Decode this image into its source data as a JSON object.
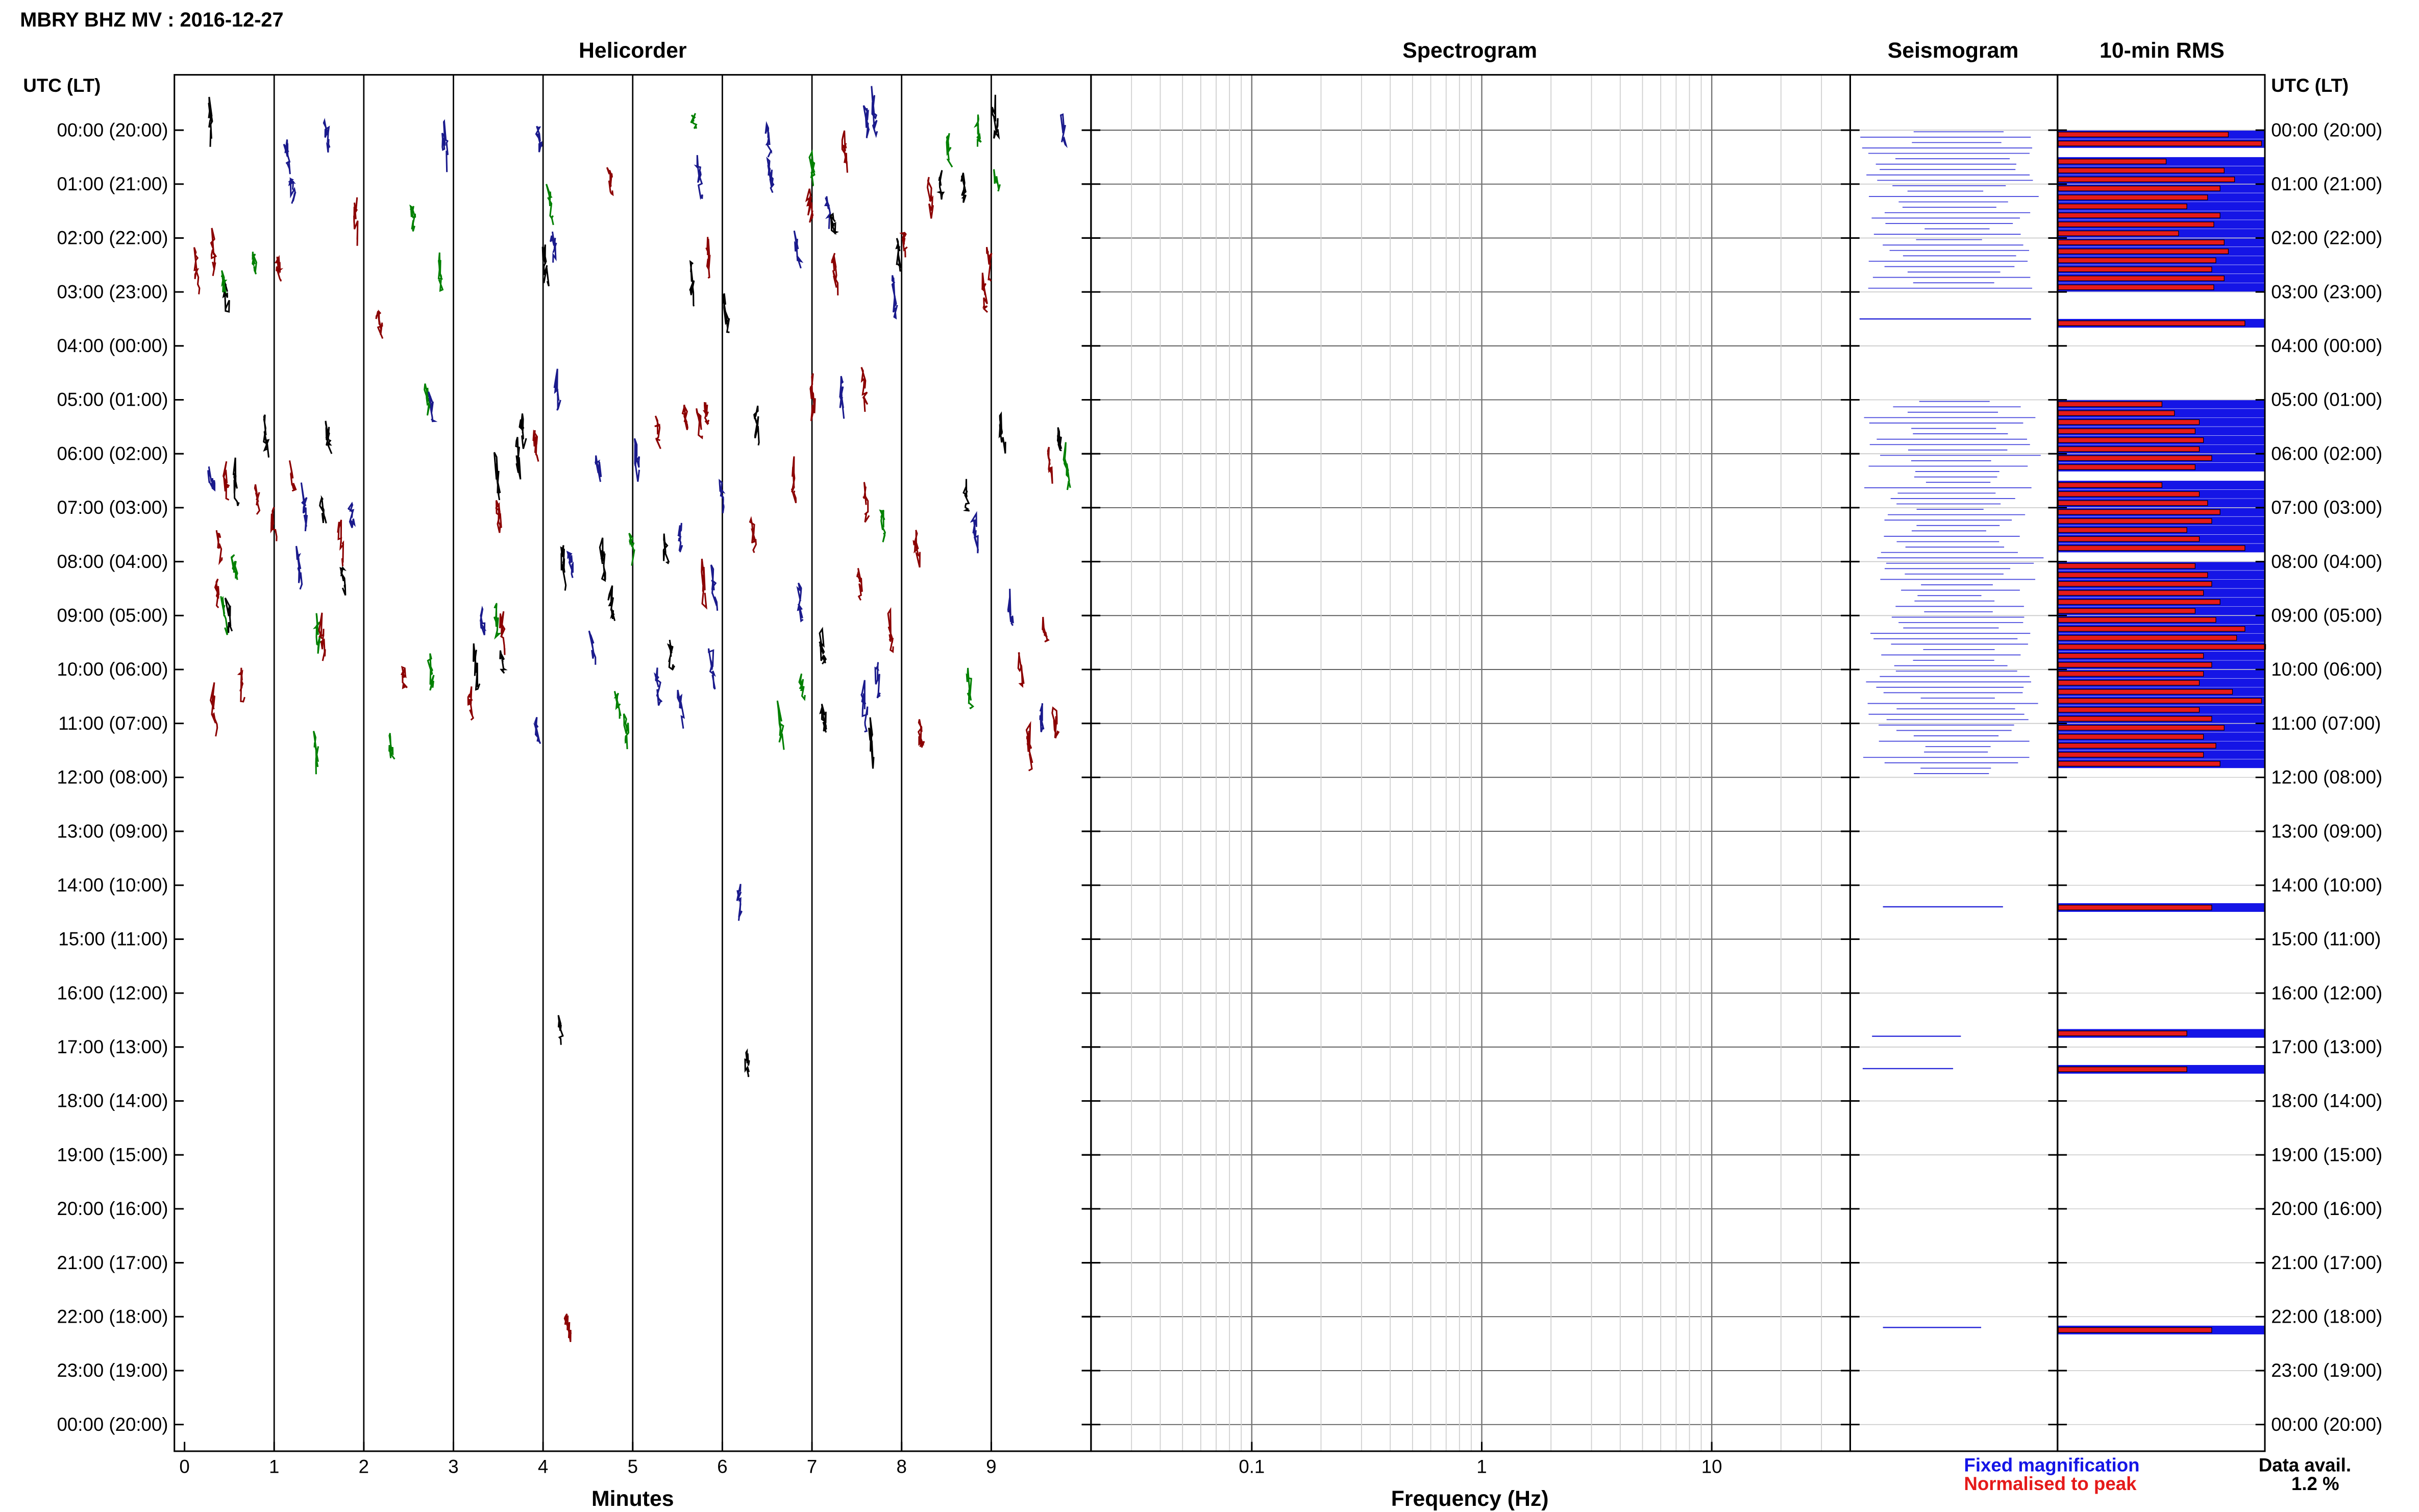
{
  "header": {
    "title": "MBRY BHZ MV : 2016-12-27",
    "time_axis_label": "UTC (LT)"
  },
  "panels": {
    "helicorder": "Helicorder",
    "spectrogram": "Spectrogram",
    "seismogram": "Seismogram",
    "rms": "10-min RMS"
  },
  "axes": {
    "minutes_label": "Minutes",
    "frequency_label": "Frequency (Hz)",
    "minute_ticks": [
      "0",
      "1",
      "2",
      "3",
      "4",
      "5",
      "6",
      "7",
      "8",
      "9"
    ],
    "frequency_ticks": [
      "0.1",
      "1",
      "10"
    ]
  },
  "legend": {
    "fixed": "Fixed magnification",
    "normalised": "Normalised to peak",
    "fixed_color": "#1515e6",
    "normalised_color": "#e51a1a"
  },
  "availability": {
    "label": "Data avail.",
    "value": "1.2 %"
  },
  "chart_data": {
    "type": "bar",
    "title": "MBRY BHZ MV : 2016-12-27",
    "time_labels": [
      "00:00 (20:00)",
      "01:00 (21:00)",
      "02:00 (22:00)",
      "03:00 (23:00)",
      "04:00 (00:00)",
      "05:00 (01:00)",
      "06:00 (02:00)",
      "07:00 (03:00)",
      "08:00 (04:00)",
      "09:00 (05:00)",
      "10:00 (06:00)",
      "11:00 (07:00)",
      "12:00 (08:00)",
      "13:00 (09:00)",
      "14:00 (10:00)",
      "15:00 (11:00)",
      "16:00 (12:00)",
      "17:00 (13:00)",
      "18:00 (14:00)",
      "19:00 (15:00)",
      "20:00 (16:00)",
      "21:00 (17:00)",
      "22:00 (18:00)",
      "23:00 (19:00)",
      "00:00 (20:00)"
    ],
    "helicorder_colors": [
      "#000000",
      "#1a1a8c",
      "#8b0000",
      "#008000"
    ],
    "helicorder_xlim": [
      0,
      10
    ],
    "spectrogram_xlim": [
      0.02,
      40
    ],
    "rms_unit_hours": 0.1667,
    "rms_bars": [
      {
        "t": 0.0,
        "fixed": 1.0,
        "normalised": 0.82
      },
      {
        "t": 0.167,
        "fixed": 1.0,
        "normalised": 0.98
      },
      {
        "t": 0.5,
        "fixed": 1.0,
        "normalised": 0.52
      },
      {
        "t": 0.667,
        "fixed": 1.0,
        "normalised": 0.8
      },
      {
        "t": 0.833,
        "fixed": 1.0,
        "normalised": 0.85
      },
      {
        "t": 1.0,
        "fixed": 1.0,
        "normalised": 0.78
      },
      {
        "t": 1.167,
        "fixed": 1.0,
        "normalised": 0.72
      },
      {
        "t": 1.333,
        "fixed": 1.0,
        "normalised": 0.62
      },
      {
        "t": 1.5,
        "fixed": 1.0,
        "normalised": 0.78
      },
      {
        "t": 1.667,
        "fixed": 1.0,
        "normalised": 0.75
      },
      {
        "t": 1.833,
        "fixed": 1.0,
        "normalised": 0.58
      },
      {
        "t": 2.0,
        "fixed": 1.0,
        "normalised": 0.8
      },
      {
        "t": 2.167,
        "fixed": 1.0,
        "normalised": 0.82
      },
      {
        "t": 2.333,
        "fixed": 1.0,
        "normalised": 0.76
      },
      {
        "t": 2.5,
        "fixed": 1.0,
        "normalised": 0.74
      },
      {
        "t": 2.667,
        "fixed": 1.0,
        "normalised": 0.8
      },
      {
        "t": 2.833,
        "fixed": 1.0,
        "normalised": 0.75
      },
      {
        "t": 3.5,
        "fixed": 1.0,
        "normalised": 0.9
      },
      {
        "t": 5.0,
        "fixed": 1.0,
        "normalised": 0.5
      },
      {
        "t": 5.167,
        "fixed": 1.0,
        "normalised": 0.56
      },
      {
        "t": 5.333,
        "fixed": 1.0,
        "normalised": 0.68
      },
      {
        "t": 5.5,
        "fixed": 1.0,
        "normalised": 0.66
      },
      {
        "t": 5.667,
        "fixed": 1.0,
        "normalised": 0.7
      },
      {
        "t": 5.833,
        "fixed": 1.0,
        "normalised": 0.68
      },
      {
        "t": 6.0,
        "fixed": 1.0,
        "normalised": 0.74
      },
      {
        "t": 6.167,
        "fixed": 1.0,
        "normalised": 0.66
      },
      {
        "t": 6.5,
        "fixed": 1.0,
        "normalised": 0.5
      },
      {
        "t": 6.667,
        "fixed": 1.0,
        "normalised": 0.68
      },
      {
        "t": 6.833,
        "fixed": 1.0,
        "normalised": 0.72
      },
      {
        "t": 7.0,
        "fixed": 1.0,
        "normalised": 0.78
      },
      {
        "t": 7.167,
        "fixed": 1.0,
        "normalised": 0.74
      },
      {
        "t": 7.333,
        "fixed": 1.0,
        "normalised": 0.62
      },
      {
        "t": 7.5,
        "fixed": 1.0,
        "normalised": 0.68
      },
      {
        "t": 7.667,
        "fixed": 1.0,
        "normalised": 0.9
      },
      {
        "t": 8.0,
        "fixed": 1.0,
        "normalised": 0.66
      },
      {
        "t": 8.167,
        "fixed": 1.0,
        "normalised": 0.72
      },
      {
        "t": 8.333,
        "fixed": 1.0,
        "normalised": 0.74
      },
      {
        "t": 8.5,
        "fixed": 1.0,
        "normalised": 0.7
      },
      {
        "t": 8.667,
        "fixed": 1.0,
        "normalised": 0.78
      },
      {
        "t": 8.833,
        "fixed": 1.0,
        "normalised": 0.66
      },
      {
        "t": 9.0,
        "fixed": 1.0,
        "normalised": 0.76
      },
      {
        "t": 9.167,
        "fixed": 1.0,
        "normalised": 0.9
      },
      {
        "t": 9.333,
        "fixed": 1.0,
        "normalised": 0.86
      },
      {
        "t": 9.5,
        "fixed": 1.0,
        "normalised": 1.0
      },
      {
        "t": 9.667,
        "fixed": 1.0,
        "normalised": 0.7
      },
      {
        "t": 9.833,
        "fixed": 1.0,
        "normalised": 0.74
      },
      {
        "t": 10.0,
        "fixed": 1.0,
        "normalised": 0.7
      },
      {
        "t": 10.167,
        "fixed": 1.0,
        "normalised": 0.68
      },
      {
        "t": 10.333,
        "fixed": 1.0,
        "normalised": 0.84
      },
      {
        "t": 10.5,
        "fixed": 1.0,
        "normalised": 0.98
      },
      {
        "t": 10.667,
        "fixed": 1.0,
        "normalised": 0.68
      },
      {
        "t": 10.833,
        "fixed": 1.0,
        "normalised": 0.74
      },
      {
        "t": 11.0,
        "fixed": 1.0,
        "normalised": 0.8
      },
      {
        "t": 11.167,
        "fixed": 1.0,
        "normalised": 0.7
      },
      {
        "t": 11.333,
        "fixed": 1.0,
        "normalised": 0.76
      },
      {
        "t": 11.5,
        "fixed": 1.0,
        "normalised": 0.7
      },
      {
        "t": 11.667,
        "fixed": 1.0,
        "normalised": 0.78
      },
      {
        "t": 14.333,
        "fixed": 1.0,
        "normalised": 0.74
      },
      {
        "t": 16.667,
        "fixed": 1.0,
        "normalised": 0.62
      },
      {
        "t": 17.333,
        "fixed": 1.0,
        "normalised": 0.62
      },
      {
        "t": 22.167,
        "fixed": 1.0,
        "normalised": 0.74
      }
    ]
  }
}
